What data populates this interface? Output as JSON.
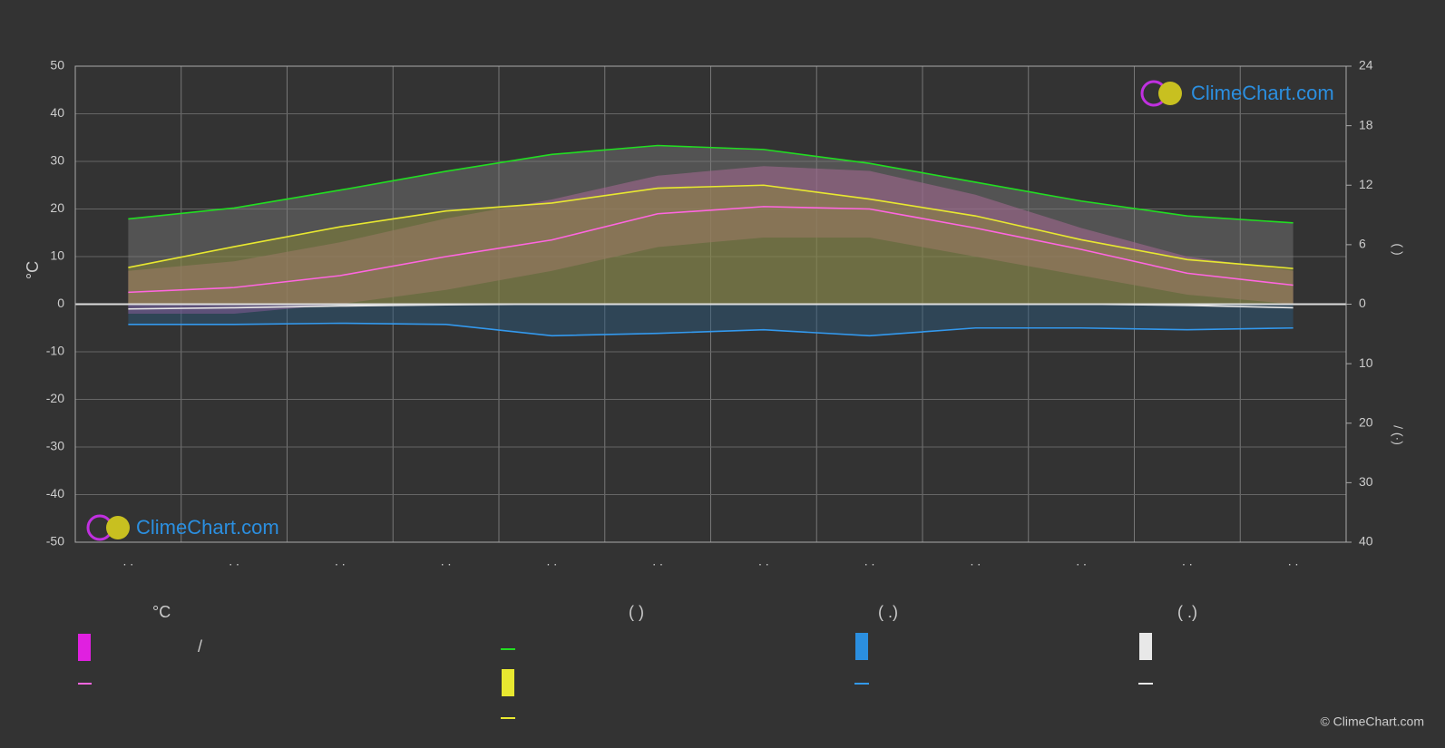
{
  "chart_data": {
    "type": "climate",
    "categories": [
      ". .",
      ". .",
      ". .",
      ". .",
      ". .",
      ". .",
      ". .",
      ". .",
      ". .",
      ". .",
      ". .",
      ". ."
    ],
    "y_label": "°C",
    "y2_label": "(        )",
    "y3_label": "/  (·)",
    "ylim": [
      -50,
      50
    ],
    "yticks": [
      -50,
      -40,
      -30,
      -20,
      -10,
      0,
      10,
      20,
      30,
      40,
      50
    ],
    "y2lim": [
      0,
      24
    ],
    "y2ticks": [
      0,
      6,
      12,
      18,
      24
    ],
    "y3lim": [
      0,
      40
    ],
    "y3ticks": [
      10,
      20,
      30,
      40
    ],
    "grid": true,
    "series": [
      {
        "color": "#c05aa0",
        "kind": "range",
        "axis": "y",
        "values": [
          7,
          9,
          13,
          18,
          22,
          27,
          29,
          28,
          23,
          16,
          10,
          7
        ],
        "lows": [
          -2,
          -2,
          0,
          3,
          7,
          12,
          14,
          14,
          10,
          6,
          2,
          0
        ]
      },
      {
        "color": "#7a7a7a",
        "kind": "area",
        "axis": "y2",
        "values": [
          8.6,
          9.7,
          11.5,
          13.4,
          15.1,
          16.0,
          15.6,
          14.2,
          12.3,
          10.4,
          8.9,
          8.2
        ]
      },
      {
        "color": "#8e8e30",
        "kind": "area",
        "axis": "y2",
        "values": [
          3.7,
          5.8,
          7.8,
          9.4,
          10.2,
          11.7,
          12.0,
          10.6,
          8.9,
          6.5,
          4.5,
          3.6
        ]
      },
      {
        "color": "#2a5a80",
        "kind": "area",
        "axis": "y3",
        "values": [
          3.4,
          3.4,
          3.2,
          3.4,
          5.3,
          4.9,
          4.3,
          5.3,
          4.0,
          4.0,
          4.3,
          4.0
        ]
      },
      {
        "color": "#22dd22",
        "kind": "line",
        "axis": "y2",
        "values": [
          8.6,
          9.7,
          11.5,
          13.4,
          15.1,
          16.0,
          15.6,
          14.2,
          12.3,
          10.4,
          8.9,
          8.2
        ]
      },
      {
        "color": "#e8e830",
        "kind": "line",
        "axis": "y2",
        "values": [
          3.7,
          5.8,
          7.8,
          9.4,
          10.2,
          11.7,
          12.0,
          10.6,
          8.9,
          6.5,
          4.5,
          3.6
        ]
      },
      {
        "color": "#ff66e0",
        "kind": "line",
        "axis": "y",
        "values": [
          2.5,
          3.5,
          6,
          10,
          13.5,
          19,
          20.5,
          20,
          16,
          11.5,
          6.5,
          4
        ]
      },
      {
        "color": "#3399ee",
        "kind": "line",
        "axis": "y3",
        "values": [
          3.4,
          3.4,
          3.2,
          3.4,
          5.3,
          4.9,
          4.3,
          5.3,
          4.0,
          4.0,
          4.3,
          4.0
        ]
      },
      {
        "color": "#e8e8e8",
        "kind": "line",
        "axis": "y3",
        "values": [
          0.8,
          0.6,
          0.3,
          0.1,
          0,
          0,
          0,
          0,
          0,
          0,
          0.2,
          0.6
        ]
      }
    ]
  },
  "legend": {
    "headers": [
      "°C",
      "(          )",
      "(   .)",
      "(   .)"
    ],
    "slash": "/"
  },
  "brand": {
    "logo": "ClimeChart.com",
    "copyright": "© ClimeChart.com"
  }
}
